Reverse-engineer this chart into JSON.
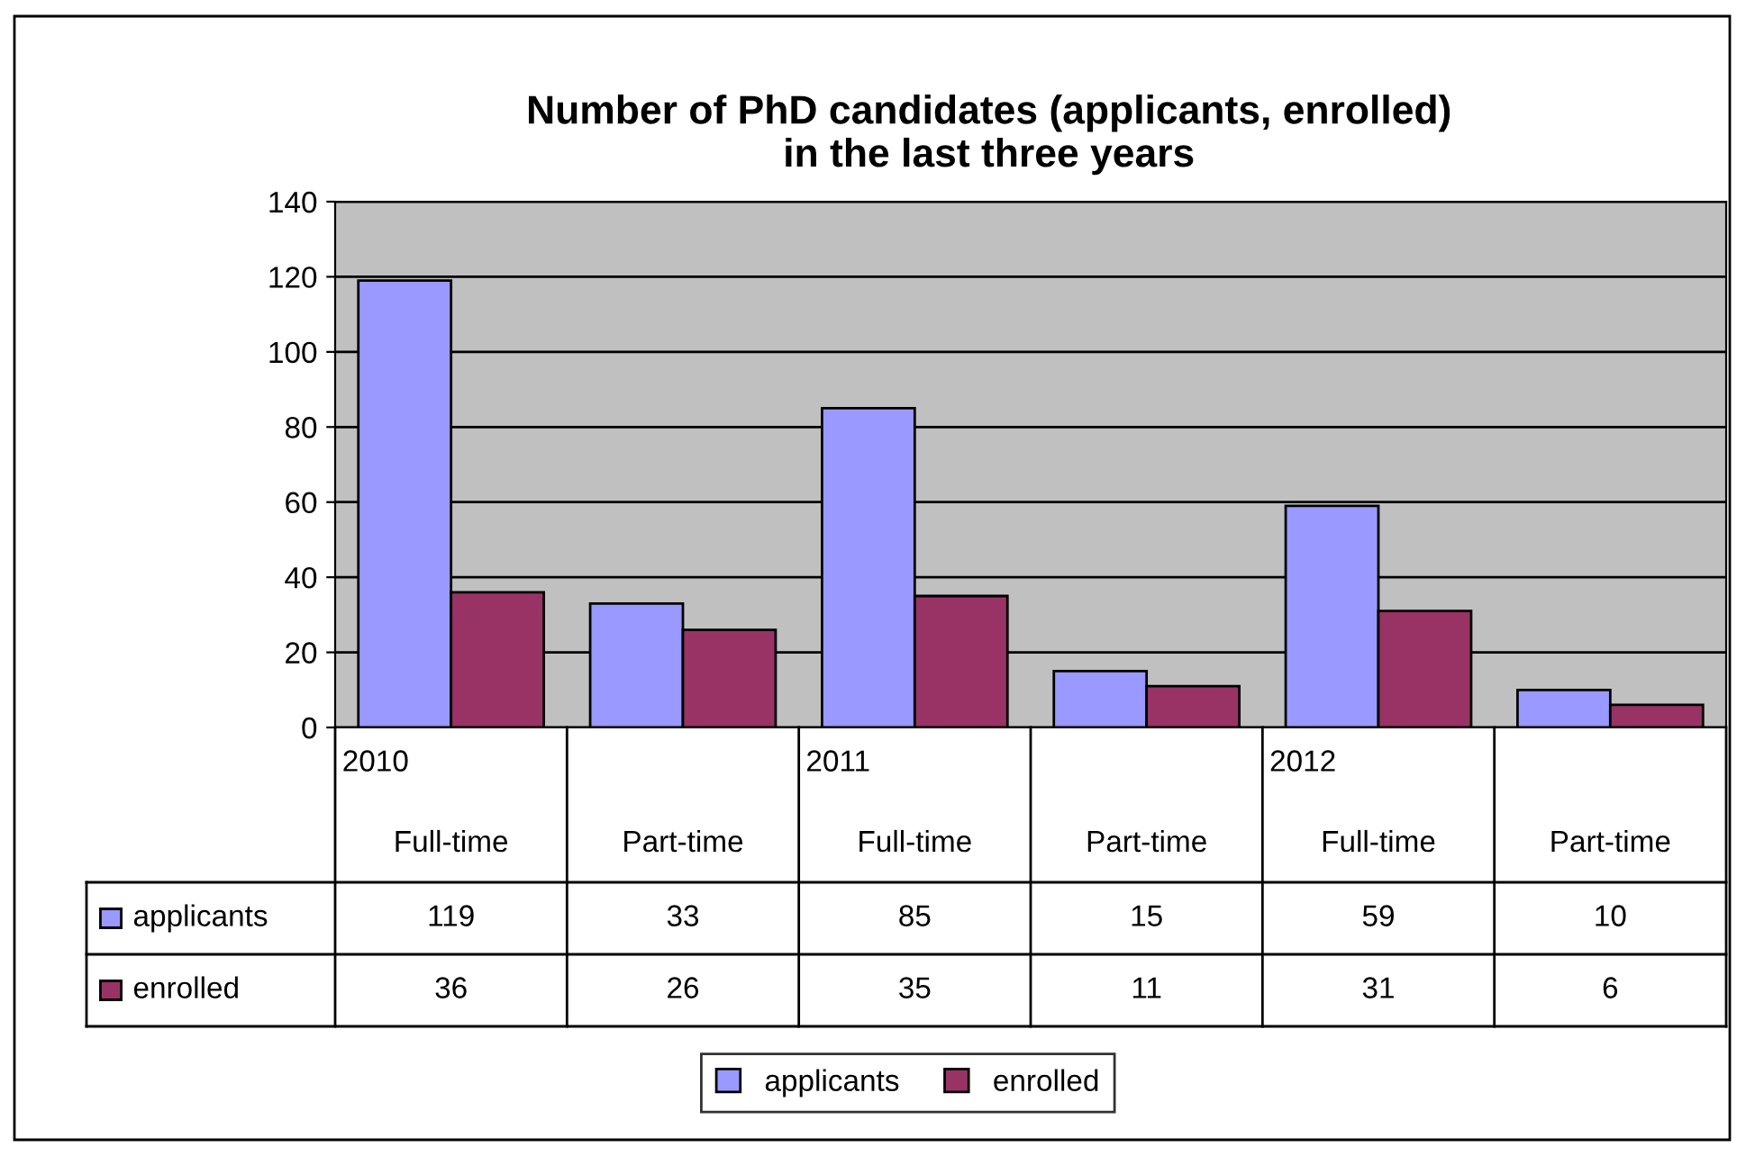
{
  "chart_data": {
    "type": "bar",
    "title": "Number of PhD candidates (applicants, enrolled)\nin the last three years",
    "categories": [
      "Full-time",
      "Part-time",
      "Full-time",
      "Part-time",
      "Full-time",
      "Part-time"
    ],
    "annotations": [
      "2010",
      "2011",
      "2012"
    ],
    "series": [
      {
        "name": "applicants",
        "color": "#9999ff",
        "values": [
          119,
          33,
          85,
          15,
          59,
          10
        ]
      },
      {
        "name": "enrolled",
        "color": "#993366",
        "values": [
          36,
          26,
          35,
          11,
          31,
          6
        ]
      }
    ],
    "ylim": [
      0,
      140
    ],
    "yticks": [
      0,
      20,
      40,
      60,
      80,
      100,
      120,
      140
    ],
    "grid": "y",
    "legend": "bottom",
    "data_labels": true
  }
}
